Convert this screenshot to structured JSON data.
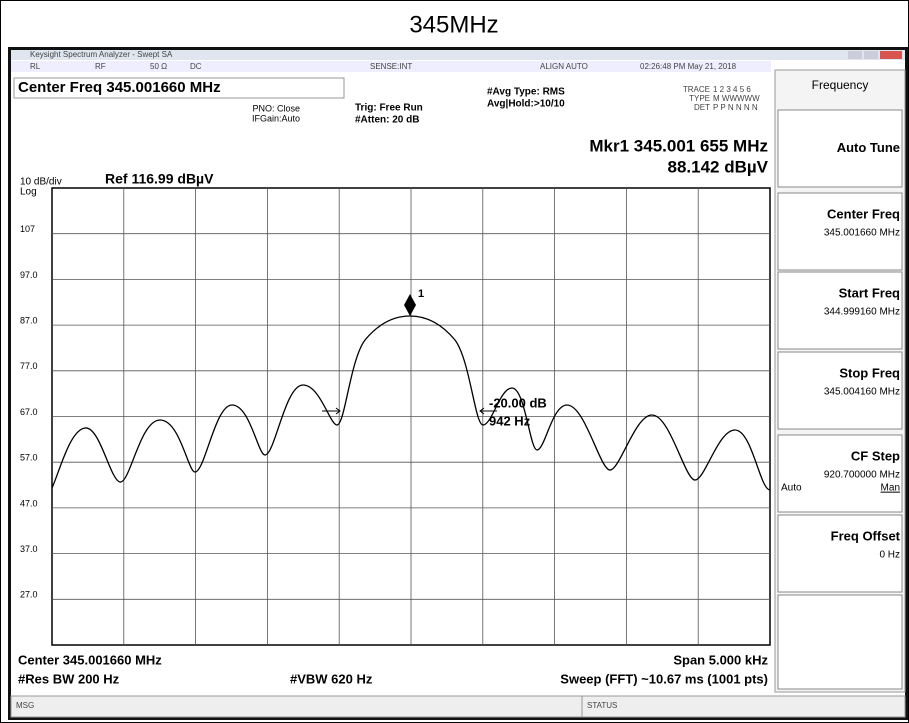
{
  "banner": "345MHz",
  "window": {
    "title": "Keysight Spectrum Analyzer - Swept SA"
  },
  "status_row": [
    "RL",
    "RF",
    "50 Ω",
    "DC",
    "SENSE:INT",
    "ALIGN AUTO",
    "02:26:48 PM May 21, 2018"
  ],
  "settings": {
    "center": "Center Freq 345.001660 MHz",
    "pno": "PNO: Close",
    "ifgain": "IFGain:Auto",
    "trig": "Trig: Free Run",
    "atten": "#Atten: 20 dB",
    "avg_type": "#Avg Type: RMS",
    "avg_hold": "Avg|Hold:>10/10",
    "trace": [
      "TRACE",
      "1 2 3 4 5 6"
    ],
    "type": [
      "TYPE",
      "M WWWWW"
    ],
    "det": [
      "DET",
      "P P N N N N"
    ]
  },
  "marker": {
    "freq": "Mkr1 345.001 655 MHz",
    "level": "88.142 dBµV",
    "label": "1"
  },
  "scale": {
    "div": "10 dB/div",
    "mode": "Log",
    "ref": "Ref 116.99 dBµV"
  },
  "y_labels": [
    "107",
    "97.0",
    "87.0",
    "77.0",
    "67.0",
    "57.0",
    "47.0",
    "37.0",
    "27.0"
  ],
  "annotations": [
    "-20.00 dB",
    "942 Hz"
  ],
  "footer": {
    "center": "Center 345.001660 MHz",
    "rbw": "#Res BW 200 Hz",
    "vbw": "#VBW 620 Hz",
    "span": "Span 5.000 kHz",
    "sweep": "Sweep (FFT) ~10.67 ms (1001 pts)"
  },
  "message_bar": {
    "msg": "MSG",
    "status": "STATUS"
  },
  "softkeys": {
    "menu": "Frequency",
    "keys": [
      {
        "label": "Auto Tune"
      },
      {
        "label": "Center Freq",
        "value": "345.001660 MHz"
      },
      {
        "label": "Start Freq",
        "value": "344.999160 MHz"
      },
      {
        "label": "Stop Freq",
        "value": "345.004160 MHz"
      },
      {
        "label": "CF Step",
        "value": "920.700000 MHz",
        "options": [
          "Auto",
          "Man"
        ]
      },
      {
        "label": "Freq Offset",
        "value": "0 Hz"
      }
    ]
  }
}
